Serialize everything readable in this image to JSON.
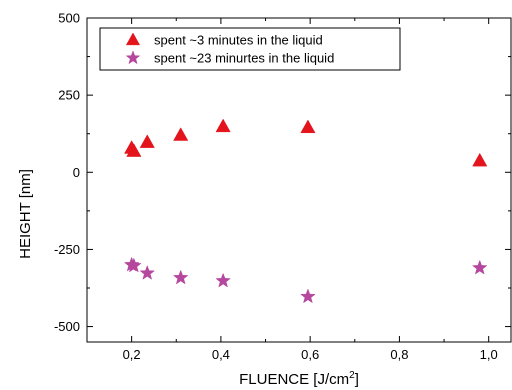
{
  "chart_data": {
    "type": "scatter",
    "xlabel": "FLUENCE [J/cm²]",
    "ylabel": "HEIGHT [nm]",
    "xlim": [
      0.1,
      1.05
    ],
    "ylim": [
      -550,
      500
    ],
    "xticks": [
      {
        "value": 0.2,
        "label": "0,2"
      },
      {
        "value": 0.4,
        "label": "0,4"
      },
      {
        "value": 0.6,
        "label": "0,6"
      },
      {
        "value": 0.8,
        "label": "0,8"
      },
      {
        "value": 1.0,
        "label": "1,0"
      }
    ],
    "yticks": [
      {
        "value": 500,
        "label": "500"
      },
      {
        "value": 250,
        "label": "250"
      },
      {
        "value": 0,
        "label": "0"
      },
      {
        "value": -250,
        "label": "-250"
      },
      {
        "value": -500,
        "label": "-500"
      }
    ],
    "grid": false,
    "legend_position": "top-left",
    "series": [
      {
        "name": "spent ~3 minutes in the liquid",
        "marker": "triangle",
        "color": "#e3141c",
        "points": [
          {
            "x": 0.2,
            "y": 78
          },
          {
            "x": 0.205,
            "y": 68
          },
          {
            "x": 0.235,
            "y": 97
          },
          {
            "x": 0.31,
            "y": 120
          },
          {
            "x": 0.405,
            "y": 148
          },
          {
            "x": 0.595,
            "y": 145
          },
          {
            "x": 0.98,
            "y": 37
          }
        ]
      },
      {
        "name": "spent ~23 minurtes in the liquid",
        "marker": "star",
        "color": "#b5479f",
        "points": [
          {
            "x": 0.2,
            "y": -300
          },
          {
            "x": 0.205,
            "y": -303
          },
          {
            "x": 0.235,
            "y": -327
          },
          {
            "x": 0.31,
            "y": -342
          },
          {
            "x": 0.405,
            "y": -352
          },
          {
            "x": 0.595,
            "y": -403
          },
          {
            "x": 0.98,
            "y": -310
          }
        ]
      }
    ]
  }
}
